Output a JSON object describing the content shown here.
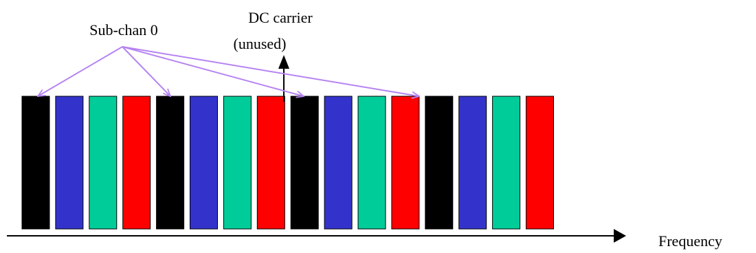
{
  "annotations": {
    "sub_channel": "Sub-chan 0",
    "dc_carrier": "DC carrier",
    "dc_note": "(unused)"
  },
  "axis": {
    "label": "Frequency"
  }
}
